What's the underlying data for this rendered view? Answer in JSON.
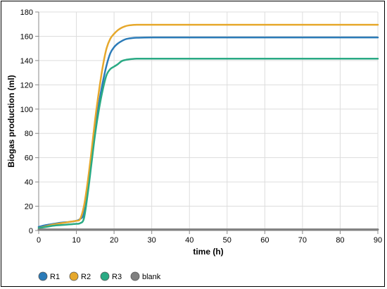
{
  "chart_data": {
    "type": "line",
    "title": "",
    "xlabel": "time (h)",
    "ylabel": "Biogas production (ml)",
    "xlim": [
      0,
      90
    ],
    "ylim": [
      0,
      180
    ],
    "xticks": [
      0,
      10,
      20,
      30,
      40,
      50,
      60,
      70,
      80,
      90
    ],
    "yticks": [
      0,
      20,
      40,
      60,
      80,
      100,
      120,
      140,
      160,
      180
    ],
    "grid": true,
    "legend_position": "bottom-left",
    "colors": {
      "R1": "#2b7bb8",
      "R2": "#e6a82c",
      "R3": "#2aaa84",
      "blank": "#808080"
    },
    "series": [
      {
        "name": "R1",
        "x": [
          0,
          2,
          4,
          6,
          8,
          10,
          11,
          12,
          13,
          14,
          15,
          16,
          17,
          18,
          19,
          20,
          21,
          22,
          23,
          24,
          25,
          26,
          30,
          40,
          50,
          60,
          70,
          80,
          90
        ],
        "y": [
          3,
          4.5,
          5.5,
          6.5,
          7,
          8,
          9.5,
          14,
          35,
          60,
          85,
          105,
          122,
          136,
          146,
          151,
          154,
          156,
          157.5,
          158.2,
          158.6,
          158.8,
          159,
          159,
          159,
          159,
          159,
          159,
          159
        ]
      },
      {
        "name": "R2",
        "x": [
          0,
          2,
          4,
          6,
          8,
          10,
          11,
          12,
          13,
          14,
          15,
          16,
          17,
          18,
          19,
          20,
          21,
          22,
          23,
          24,
          25,
          26,
          30,
          40,
          50,
          60,
          70,
          80,
          90
        ],
        "y": [
          2,
          3.5,
          5,
          6,
          7,
          8,
          9.5,
          20,
          40,
          65,
          92,
          115,
          135,
          150,
          158,
          162,
          165,
          167,
          168.3,
          169,
          169.3,
          169.5,
          169.5,
          169.5,
          169.5,
          169.5,
          169.5,
          169.5,
          169.5
        ]
      },
      {
        "name": "R3",
        "x": [
          0,
          2,
          4,
          6,
          8,
          10,
          11,
          12,
          13,
          14,
          15,
          16,
          17,
          18,
          19,
          20,
          21,
          22,
          23,
          24,
          25,
          26,
          30,
          40,
          50,
          60,
          70,
          80,
          90
        ],
        "y": [
          2,
          3,
          4,
          4.5,
          5,
          5.5,
          6,
          10,
          30,
          55,
          80,
          100,
          116,
          128,
          133,
          135,
          137,
          139.5,
          140.5,
          141,
          141.3,
          141.5,
          141.5,
          141.5,
          141.5,
          141.5,
          141.5,
          141.5,
          141.5
        ]
      },
      {
        "name": "blank",
        "x": [
          0,
          10,
          20,
          30,
          40,
          50,
          60,
          70,
          80,
          90
        ],
        "y": [
          0.8,
          0.8,
          0.8,
          0.8,
          0.8,
          0.8,
          0.8,
          0.8,
          0.8,
          0.8
        ]
      }
    ]
  }
}
